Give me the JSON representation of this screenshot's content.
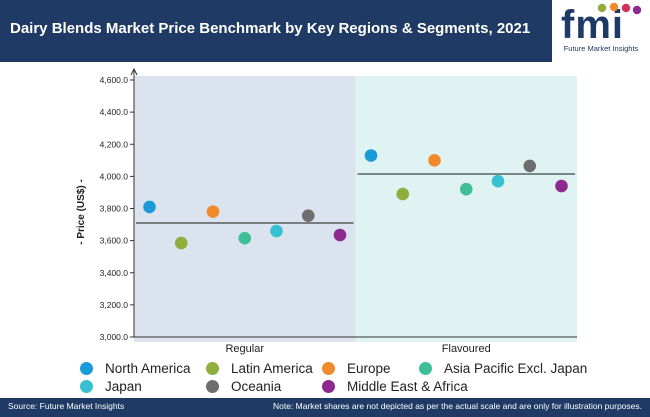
{
  "header": {
    "title": "Dairy Blends Market Price Benchmark by Key Regions & Segments, 2021",
    "logo_text": "fmi",
    "logo_caption": "Future Market Insights"
  },
  "chart_data": {
    "type": "scatter",
    "title": "",
    "ylabel": "- Price (US$) -",
    "xlabel": "",
    "ylim": [
      3000,
      4600
    ],
    "yticks": [
      3000,
      3200,
      3400,
      3600,
      3800,
      4000,
      4200,
      4400,
      4600
    ],
    "ytick_labels": [
      "3,000.0",
      "3,200.0",
      "3,400.0",
      "3,600.0",
      "3,800.0",
      "4,000.0",
      "4,200.0",
      "4,400.0",
      "4,600.0"
    ],
    "categories": [
      "Regular",
      "Flavoured"
    ],
    "category_averages": [
      3710,
      4015
    ],
    "panel_colors": [
      "#dbe3ef",
      "#e0f3f3"
    ],
    "legend_position": "bottom",
    "grid": false,
    "series": [
      {
        "name": "North America",
        "color": "#1a9bd7",
        "values": [
          3810,
          4130
        ]
      },
      {
        "name": "Latin America",
        "color": "#8fae3c",
        "values": [
          3585,
          3890
        ]
      },
      {
        "name": "Europe",
        "color": "#f08a2a",
        "values": [
          3780,
          4100
        ]
      },
      {
        "name": "Asia Pacific Excl. Japan",
        "color": "#3fbf95",
        "values": [
          3615,
          3920
        ]
      },
      {
        "name": "Japan",
        "color": "#36c0d2",
        "values": [
          3660,
          3970
        ]
      },
      {
        "name": "Oceania",
        "color": "#6e6e6e",
        "values": [
          3755,
          4065
        ]
      },
      {
        "name": "Middle East & Africa",
        "color": "#8e2a8e",
        "values": [
          3635,
          3940
        ]
      }
    ]
  },
  "footer": {
    "source": "Source: Future Market Insights",
    "note": "Note: Market shares are not depicted as per the actual scale and are only for illustration purposes."
  },
  "colors": {
    "header_bg": "#1f3a64",
    "text": "#222222"
  }
}
